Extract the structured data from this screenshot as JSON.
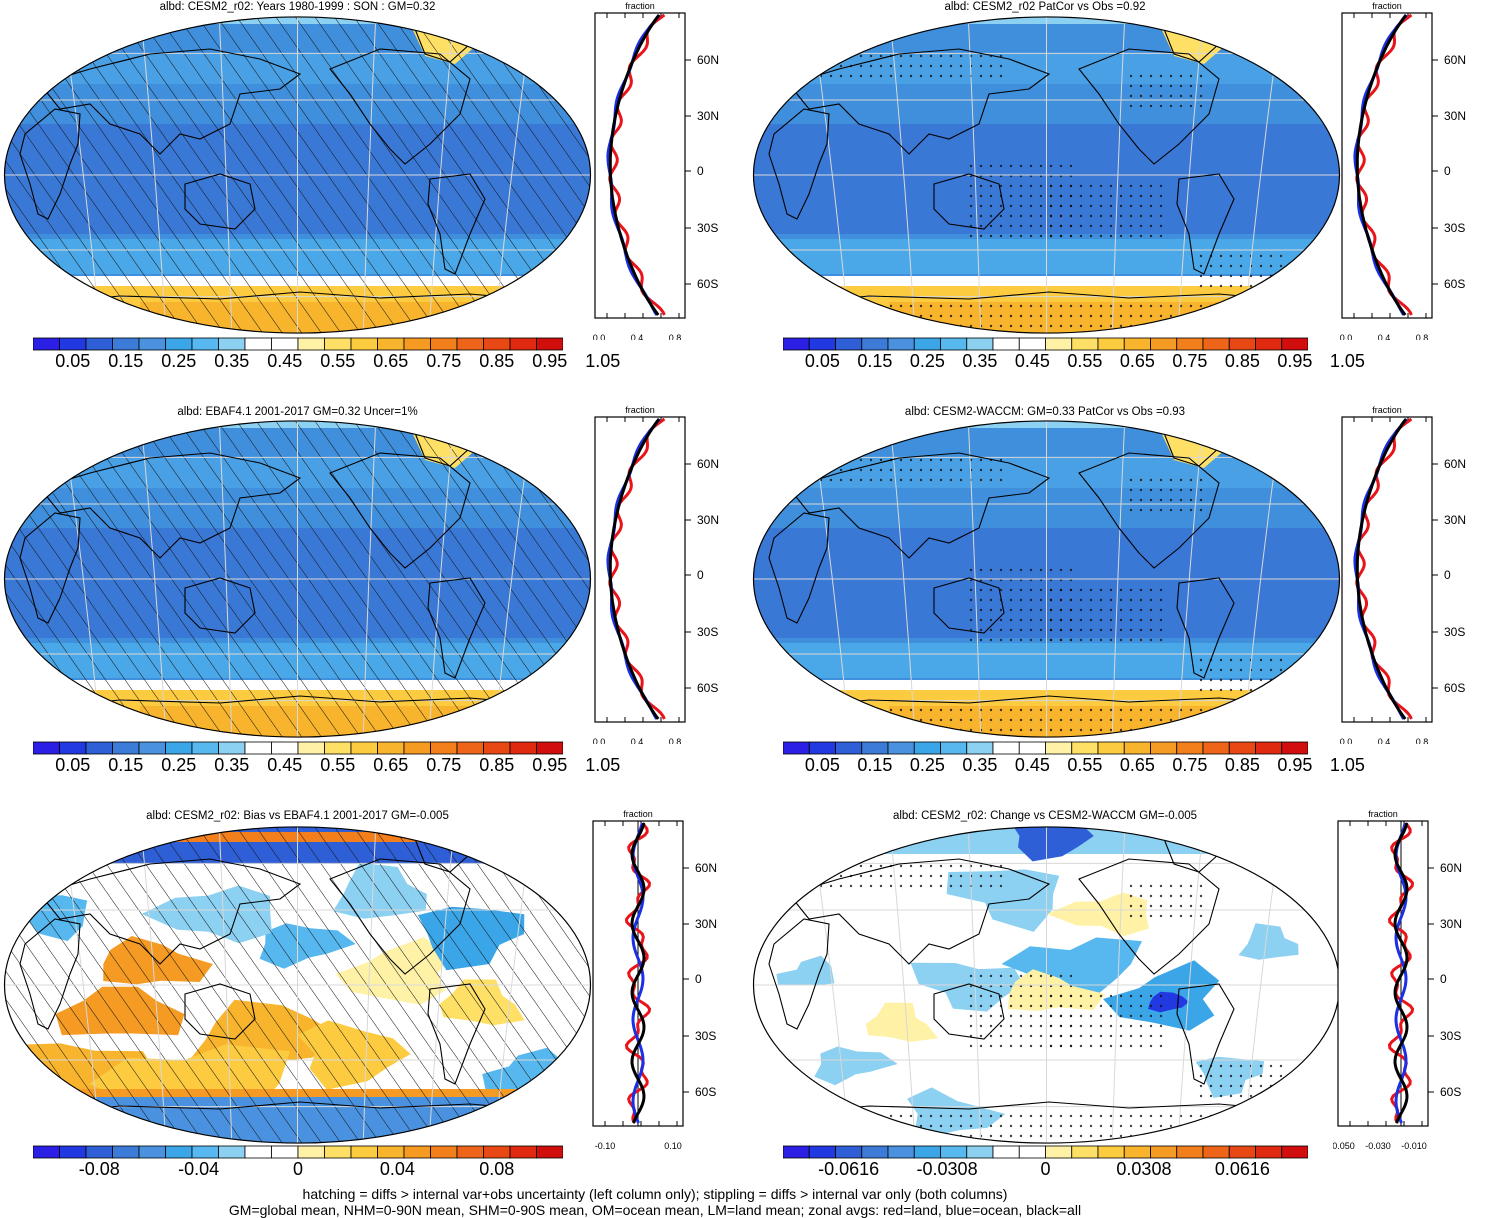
{
  "panels": [
    {
      "id": "p1",
      "title": "albd: CESM2_r02: Years 1980-1999 : SON : GM=0.32",
      "kind": "abs",
      "hatch": true,
      "stipple": false,
      "zonal_axis_title": "fraction",
      "zonal_x_ticks": [
        "0.0",
        "0.4",
        "0.8"
      ],
      "lat_labels": [
        "60N",
        "30N",
        "0",
        "30S",
        "60S"
      ],
      "colorbar_labels": [
        "0.05",
        "0.15",
        "0.25",
        "0.35",
        "0.45",
        "0.55",
        "0.65",
        "0.75",
        "0.85",
        "0.95",
        "1.05"
      ]
    },
    {
      "id": "p2",
      "title": "albd: CESM2_r02 PatCor vs Obs =0.92",
      "kind": "abs",
      "hatch": false,
      "stipple": true,
      "zonal_axis_title": "fraction",
      "zonal_x_ticks": [
        "0.0",
        "0.4",
        "0.8"
      ],
      "lat_labels": [
        "60N",
        "30N",
        "0",
        "30S",
        "60S"
      ],
      "colorbar_labels": [
        "0.05",
        "0.15",
        "0.25",
        "0.35",
        "0.45",
        "0.55",
        "0.65",
        "0.75",
        "0.85",
        "0.95",
        "1.05"
      ]
    },
    {
      "id": "p3",
      "title": "albd: EBAF4.1 2001-2017 GM=0.32 Uncer=1%",
      "kind": "abs",
      "hatch": true,
      "stipple": false,
      "zonal_axis_title": "fraction",
      "zonal_x_ticks": [
        "0.0",
        "0.4",
        "0.8"
      ],
      "lat_labels": [
        "60N",
        "30N",
        "0",
        "30S",
        "60S"
      ],
      "colorbar_labels": [
        "0.05",
        "0.15",
        "0.25",
        "0.35",
        "0.45",
        "0.55",
        "0.65",
        "0.75",
        "0.85",
        "0.95",
        "1.05"
      ]
    },
    {
      "id": "p4",
      "title": "albd: CESM2-WACCM: GM=0.33 PatCor vs Obs =0.93",
      "kind": "abs",
      "hatch": false,
      "stipple": true,
      "zonal_axis_title": "fraction",
      "zonal_x_ticks": [
        "0.0",
        "0.4",
        "0.8"
      ],
      "lat_labels": [
        "60N",
        "30N",
        "0",
        "30S",
        "60S"
      ],
      "colorbar_labels": [
        "0.05",
        "0.15",
        "0.25",
        "0.35",
        "0.45",
        "0.55",
        "0.65",
        "0.75",
        "0.85",
        "0.95",
        "1.05"
      ]
    },
    {
      "id": "p5",
      "title": "albd: CESM2_r02: Bias vs EBAF4.1 2001-2017  GM=-0.005",
      "kind": "bias",
      "hatch": true,
      "stipple": false,
      "zonal_axis_title": "fraction",
      "zonal_x_ticks": [
        "-0.10",
        "0.10"
      ],
      "lat_labels": [
        "60N",
        "30N",
        "0",
        "30S",
        "60S"
      ],
      "colorbar_labels": [
        "-0.08",
        "-0.04",
        "0",
        "0.04",
        "0.08"
      ]
    },
    {
      "id": "p6",
      "title": "albd: CESM2_r02: Change vs CESM2-WACCM GM=-0.005",
      "kind": "change",
      "hatch": false,
      "stipple": true,
      "zonal_axis_title": "fraction",
      "zonal_x_ticks": [
        "-0.050",
        "-0.030",
        "-0.010"
      ],
      "lat_labels": [
        "60N",
        "30N",
        "0",
        "30S",
        "60S"
      ],
      "colorbar_labels": [
        "-0.0616",
        "-0.0308",
        "0",
        "0.0308",
        "0.0616"
      ]
    }
  ],
  "colors": {
    "abs": [
      "#2b1fe6",
      "#2238e0",
      "#2f5fd6",
      "#3d7bd9",
      "#4a92e0",
      "#3aa6e8",
      "#56b8ee",
      "#8cd0f2",
      "#ffffff",
      "#ffffff",
      "#fff2a6",
      "#ffe066",
      "#fccb40",
      "#f7b42c",
      "#f59a22",
      "#f27f1c",
      "#ee6418",
      "#e84814",
      "#e02a10",
      "#d20d0d"
    ],
    "bias": [
      "#2b1fe6",
      "#2238e0",
      "#2f5fd6",
      "#3d7bd9",
      "#4a92e0",
      "#3aa6e8",
      "#56b8ee",
      "#8cd0f2",
      "#ffffff",
      "#ffffff",
      "#fff2a6",
      "#ffe066",
      "#fccb40",
      "#f7b42c",
      "#f59a22",
      "#f27f1c",
      "#ee6418",
      "#e84814",
      "#e02a10",
      "#d20d0d"
    ],
    "zonal_land": "#e8141a",
    "zonal_ocean": "#1a2fe6",
    "zonal_all": "#000000"
  },
  "footnote": {
    "line1": "hatching = diffs > internal var+obs uncertainty (left column only); stippling = diffs > internal var only (both columns)",
    "line2": "GM=global mean, NHM=0-90N mean, SHM=0-90S mean, OM=ocean mean, LM=land mean; zonal avgs: red=land, blue=ocean, black=all"
  }
}
